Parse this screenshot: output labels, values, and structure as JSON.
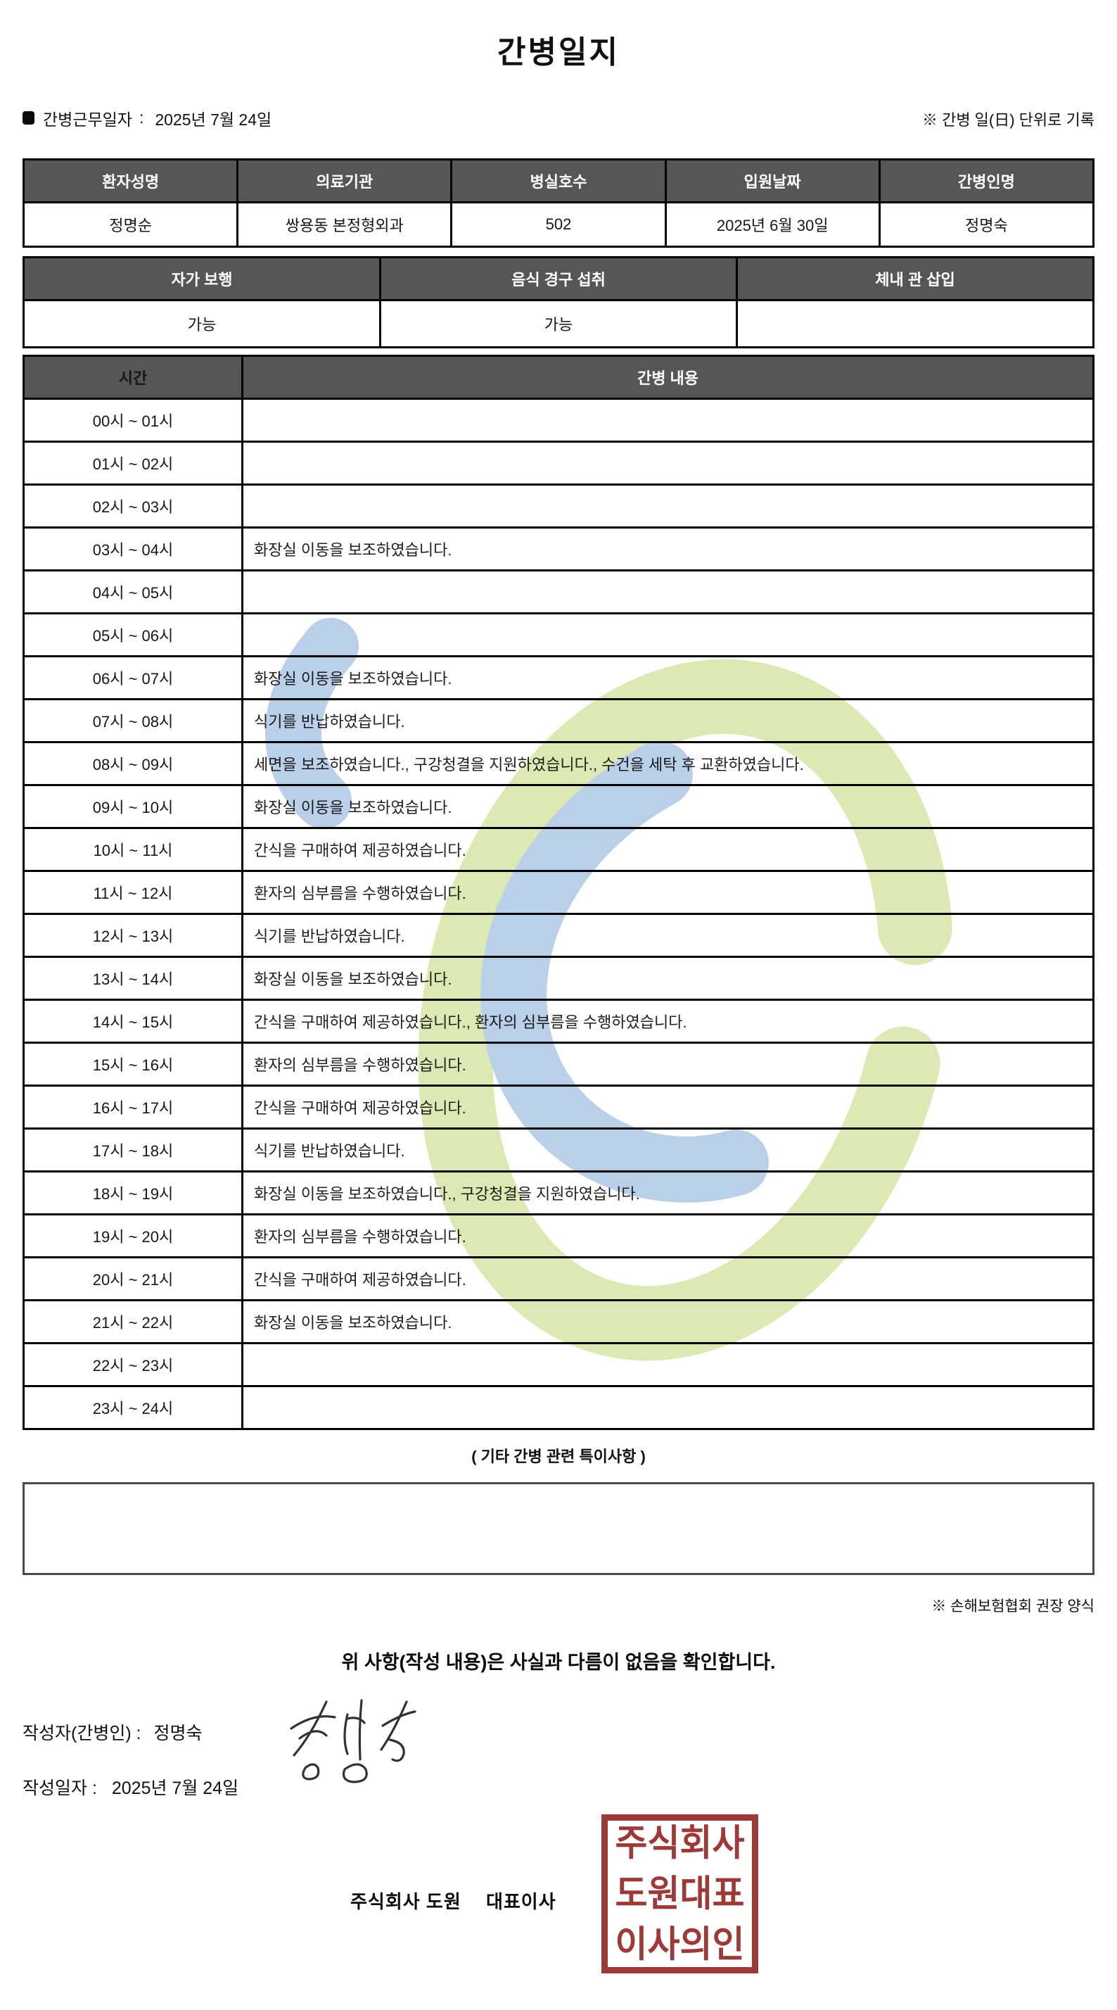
{
  "title": "간병일지",
  "meta": {
    "bullet": "■",
    "work_date_label": "간병근무일자",
    "work_date_colon": ":",
    "work_date": "2025년 7월 24일",
    "unit_note": "※ 간병 일(日) 단위로 기록"
  },
  "patient_table": {
    "headers": [
      "환자성명",
      "의료기관",
      "병실호수",
      "입원날짜",
      "간병인명"
    ],
    "values": [
      "정명순",
      "쌍용동 본정형외과",
      "502",
      "2025년 6월 30일",
      "정명숙"
    ]
  },
  "status_table": {
    "headers": [
      "자가 보행",
      "음식 경구 섭취",
      "체내 관 삽입"
    ],
    "values": [
      "가능",
      "가능",
      ""
    ]
  },
  "log_table": {
    "headers": [
      "시간",
      "간병 내용"
    ],
    "rows": [
      {
        "time": "00시 ~ 01시",
        "content": ""
      },
      {
        "time": "01시 ~ 02시",
        "content": ""
      },
      {
        "time": "02시 ~ 03시",
        "content": ""
      },
      {
        "time": "03시 ~ 04시",
        "content": "화장실 이동을 보조하였습니다."
      },
      {
        "time": "04시 ~ 05시",
        "content": ""
      },
      {
        "time": "05시 ~ 06시",
        "content": ""
      },
      {
        "time": "06시 ~ 07시",
        "content": "화장실 이동을 보조하였습니다."
      },
      {
        "time": "07시 ~ 08시",
        "content": "식기를 반납하였습니다."
      },
      {
        "time": "08시 ~ 09시",
        "content": "세면을 보조하였습니다., 구강청결을 지원하였습니다., 수건을 세탁 후 교환하였습니다."
      },
      {
        "time": "09시 ~ 10시",
        "content": "화장실 이동을 보조하였습니다."
      },
      {
        "time": "10시 ~ 11시",
        "content": "간식을 구매하여 제공하였습니다."
      },
      {
        "time": "11시 ~ 12시",
        "content": "환자의 심부름을 수행하였습니다."
      },
      {
        "time": "12시 ~ 13시",
        "content": "식기를 반납하였습니다."
      },
      {
        "time": "13시 ~ 14시",
        "content": "화장실 이동을 보조하였습니다."
      },
      {
        "time": "14시 ~ 15시",
        "content": "간식을 구매하여 제공하였습니다., 환자의 심부름을 수행하였습니다."
      },
      {
        "time": "15시 ~ 16시",
        "content": "환자의 심부름을 수행하였습니다."
      },
      {
        "time": "16시 ~ 17시",
        "content": "간식을 구매하여 제공하였습니다."
      },
      {
        "time": "17시 ~ 18시",
        "content": "식기를 반납하였습니다."
      },
      {
        "time": "18시 ~ 19시",
        "content": "화장실 이동을 보조하였습니다., 구강청결을 지원하였습니다."
      },
      {
        "time": "19시 ~ 20시",
        "content": "환자의 심부름을 수행하였습니다."
      },
      {
        "time": "20시 ~ 21시",
        "content": "간식을 구매하여 제공하였습니다."
      },
      {
        "time": "21시 ~ 22시",
        "content": "화장실 이동을 보조하였습니다."
      },
      {
        "time": "22시 ~ 23시",
        "content": ""
      },
      {
        "time": "23시 ~ 24시",
        "content": ""
      }
    ]
  },
  "notes": {
    "title": "( 기타 간병 관련 특이사항 )",
    "content": "",
    "form_note": "※ 손해보험협회 권장 양식"
  },
  "footer": {
    "confirmation": "위 사항(작성 내용)은 사실과 다름이 없음을 확인합니다.",
    "writer_label": "작성자(간병인) :",
    "writer_name": "정명숙",
    "date_label": "작성일자 :",
    "date_value": "2025년 7월 24일",
    "company_line": "주식회사 도원　 대표이사",
    "seal_rows": [
      "주식회사",
      "도원대표",
      "이사의인"
    ]
  },
  "colors": {
    "header_bg": "#565656",
    "seal_red": "#9d3a38",
    "watermark_green": "#dce8b0",
    "watermark_blue": "#b6cee8"
  }
}
